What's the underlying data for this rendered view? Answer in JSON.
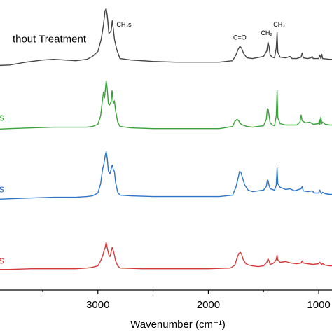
{
  "chart_data": {
    "type": "line",
    "title": "",
    "xlabel": "Wavenumber (cm⁻¹)",
    "ylabel": "",
    "x_reversed": true,
    "xlim": [
      3950,
      880
    ],
    "x_ticks": [
      3000,
      2000,
      1000
    ],
    "x_tick_labels": [
      "3000",
      "2000",
      "1000"
    ],
    "grid": false,
    "legend": "none",
    "series": [
      {
        "name": "thout Treatment",
        "color": "#444444",
        "offset": 3,
        "label_y": 2.52,
        "points": [
          [
            3950,
            2.25
          ],
          [
            3800,
            2.26
          ],
          [
            3650,
            2.3
          ],
          [
            3500,
            2.33
          ],
          [
            3400,
            2.34
          ],
          [
            3300,
            2.33
          ],
          [
            3200,
            2.32
          ],
          [
            3100,
            2.34
          ],
          [
            3050,
            2.38
          ],
          [
            3000,
            2.45
          ],
          [
            2970,
            2.62
          ],
          [
            2950,
            2.82
          ],
          [
            2935,
            3.02
          ],
          [
            2925,
            3.05
          ],
          [
            2915,
            2.95
          ],
          [
            2900,
            2.7
          ],
          [
            2880,
            2.74
          ],
          [
            2870,
            2.88
          ],
          [
            2860,
            2.77
          ],
          [
            2850,
            2.62
          ],
          [
            2830,
            2.48
          ],
          [
            2800,
            2.35
          ],
          [
            2700,
            2.33
          ],
          [
            2500,
            2.31
          ],
          [
            2300,
            2.3
          ],
          [
            2100,
            2.3
          ],
          [
            1900,
            2.3
          ],
          [
            1780,
            2.32
          ],
          [
            1750,
            2.4
          ],
          [
            1730,
            2.48
          ],
          [
            1715,
            2.52
          ],
          [
            1700,
            2.5
          ],
          [
            1680,
            2.42
          ],
          [
            1650,
            2.36
          ],
          [
            1600,
            2.35
          ],
          [
            1500,
            2.38
          ],
          [
            1470,
            2.46
          ],
          [
            1460,
            2.58
          ],
          [
            1450,
            2.52
          ],
          [
            1440,
            2.4
          ],
          [
            1420,
            2.37
          ],
          [
            1400,
            2.36
          ],
          [
            1385,
            2.5
          ],
          [
            1377,
            2.72
          ],
          [
            1370,
            2.44
          ],
          [
            1350,
            2.37
          ],
          [
            1300,
            2.36
          ],
          [
            1260,
            2.38
          ],
          [
            1240,
            2.35
          ],
          [
            1200,
            2.35
          ],
          [
            1160,
            2.37
          ],
          [
            1150,
            2.43
          ],
          [
            1140,
            2.36
          ],
          [
            1100,
            2.35
          ],
          [
            1070,
            2.36
          ],
          [
            1060,
            2.38
          ],
          [
            1050,
            2.35
          ],
          [
            1000,
            2.35
          ],
          [
            990,
            2.4
          ],
          [
            980,
            2.35
          ],
          [
            972,
            2.41
          ],
          [
            965,
            2.35
          ],
          [
            900,
            2.34
          ],
          [
            880,
            2.34
          ]
        ]
      },
      {
        "name": "s",
        "color": "#3aa23a",
        "offset": 2,
        "label_y": 1.42,
        "points": [
          [
            3950,
            1.36
          ],
          [
            3800,
            1.37
          ],
          [
            3600,
            1.38
          ],
          [
            3400,
            1.39
          ],
          [
            3200,
            1.39
          ],
          [
            3100,
            1.39
          ],
          [
            3050,
            1.4
          ],
          [
            3000,
            1.43
          ],
          [
            2975,
            1.55
          ],
          [
            2958,
            1.78
          ],
          [
            2950,
            1.88
          ],
          [
            2940,
            1.8
          ],
          [
            2930,
            1.95
          ],
          [
            2925,
            2.04
          ],
          [
            2915,
            1.92
          ],
          [
            2905,
            1.72
          ],
          [
            2895,
            1.7
          ],
          [
            2880,
            1.75
          ],
          [
            2872,
            1.9
          ],
          [
            2860,
            1.72
          ],
          [
            2850,
            1.76
          ],
          [
            2840,
            1.62
          ],
          [
            2820,
            1.46
          ],
          [
            2800,
            1.4
          ],
          [
            2700,
            1.38
          ],
          [
            2500,
            1.37
          ],
          [
            2300,
            1.37
          ],
          [
            2100,
            1.37
          ],
          [
            1900,
            1.37
          ],
          [
            1780,
            1.4
          ],
          [
            1760,
            1.47
          ],
          [
            1740,
            1.5
          ],
          [
            1725,
            1.48
          ],
          [
            1710,
            1.44
          ],
          [
            1690,
            1.42
          ],
          [
            1650,
            1.4
          ],
          [
            1600,
            1.39
          ],
          [
            1500,
            1.41
          ],
          [
            1475,
            1.5
          ],
          [
            1465,
            1.65
          ],
          [
            1458,
            1.64
          ],
          [
            1450,
            1.56
          ],
          [
            1440,
            1.45
          ],
          [
            1420,
            1.42
          ],
          [
            1400,
            1.41
          ],
          [
            1385,
            1.55
          ],
          [
            1377,
            1.9
          ],
          [
            1370,
            1.52
          ],
          [
            1350,
            1.44
          ],
          [
            1300,
            1.42
          ],
          [
            1200,
            1.42
          ],
          [
            1170,
            1.46
          ],
          [
            1160,
            1.56
          ],
          [
            1150,
            1.48
          ],
          [
            1120,
            1.45
          ],
          [
            1080,
            1.46
          ],
          [
            1050,
            1.43
          ],
          [
            1000,
            1.44
          ],
          [
            995,
            1.5
          ],
          [
            990,
            1.43
          ],
          [
            980,
            1.53
          ],
          [
            972,
            1.44
          ],
          [
            965,
            1.46
          ],
          [
            940,
            1.43
          ],
          [
            900,
            1.42
          ],
          [
            880,
            1.42
          ]
        ]
      },
      {
        "name": "s",
        "color": "#2e74c8",
        "offset": 1,
        "label_y": 0.42,
        "points": [
          [
            3950,
            0.38
          ],
          [
            3800,
            0.39
          ],
          [
            3600,
            0.4
          ],
          [
            3400,
            0.41
          ],
          [
            3200,
            0.41
          ],
          [
            3100,
            0.42
          ],
          [
            3050,
            0.43
          ],
          [
            3000,
            0.47
          ],
          [
            2975,
            0.6
          ],
          [
            2958,
            0.8
          ],
          [
            2945,
            0.88
          ],
          [
            2935,
            0.98
          ],
          [
            2925,
            1.05
          ],
          [
            2915,
            0.95
          ],
          [
            2905,
            0.78
          ],
          [
            2890,
            0.74
          ],
          [
            2878,
            0.82
          ],
          [
            2870,
            0.86
          ],
          [
            2860,
            0.8
          ],
          [
            2850,
            0.77
          ],
          [
            2840,
            0.62
          ],
          [
            2820,
            0.48
          ],
          [
            2800,
            0.44
          ],
          [
            2700,
            0.43
          ],
          [
            2500,
            0.42
          ],
          [
            2300,
            0.42
          ],
          [
            2100,
            0.42
          ],
          [
            1900,
            0.42
          ],
          [
            1780,
            0.44
          ],
          [
            1750,
            0.55
          ],
          [
            1730,
            0.68
          ],
          [
            1718,
            0.77
          ],
          [
            1705,
            0.76
          ],
          [
            1690,
            0.68
          ],
          [
            1670,
            0.58
          ],
          [
            1640,
            0.51
          ],
          [
            1600,
            0.49
          ],
          [
            1550,
            0.5
          ],
          [
            1500,
            0.51
          ],
          [
            1475,
            0.56
          ],
          [
            1465,
            0.65
          ],
          [
            1458,
            0.64
          ],
          [
            1450,
            0.58
          ],
          [
            1440,
            0.53
          ],
          [
            1420,
            0.52
          ],
          [
            1400,
            0.51
          ],
          [
            1385,
            0.58
          ],
          [
            1377,
            0.82
          ],
          [
            1370,
            0.6
          ],
          [
            1350,
            0.55
          ],
          [
            1300,
            0.52
          ],
          [
            1260,
            0.53
          ],
          [
            1220,
            0.5
          ],
          [
            1200,
            0.51
          ],
          [
            1160,
            0.53
          ],
          [
            1150,
            0.56
          ],
          [
            1140,
            0.5
          ],
          [
            1100,
            0.49
          ],
          [
            1060,
            0.5
          ],
          [
            1040,
            0.47
          ],
          [
            1000,
            0.47
          ],
          [
            990,
            0.51
          ],
          [
            975,
            0.46
          ],
          [
            965,
            0.48
          ],
          [
            940,
            0.46
          ],
          [
            900,
            0.45
          ],
          [
            880,
            0.45
          ]
        ]
      },
      {
        "name": "s",
        "color": "#d43a3a",
        "offset": 0,
        "label_y": -0.58,
        "points": [
          [
            3950,
            -0.6
          ],
          [
            3800,
            -0.6
          ],
          [
            3600,
            -0.59
          ],
          [
            3400,
            -0.59
          ],
          [
            3200,
            -0.59
          ],
          [
            3100,
            -0.58
          ],
          [
            3050,
            -0.57
          ],
          [
            3000,
            -0.55
          ],
          [
            2975,
            -0.48
          ],
          [
            2955,
            -0.4
          ],
          [
            2945,
            -0.34
          ],
          [
            2935,
            -0.3
          ],
          [
            2925,
            -0.22
          ],
          [
            2915,
            -0.3
          ],
          [
            2900,
            -0.4
          ],
          [
            2890,
            -0.42
          ],
          [
            2878,
            -0.34
          ],
          [
            2870,
            -0.29
          ],
          [
            2860,
            -0.34
          ],
          [
            2850,
            -0.4
          ],
          [
            2840,
            -0.48
          ],
          [
            2820,
            -0.55
          ],
          [
            2800,
            -0.58
          ],
          [
            2600,
            -0.59
          ],
          [
            2400,
            -0.59
          ],
          [
            2200,
            -0.59
          ],
          [
            2000,
            -0.59
          ],
          [
            1800,
            -0.58
          ],
          [
            1760,
            -0.54
          ],
          [
            1740,
            -0.44
          ],
          [
            1725,
            -0.38
          ],
          [
            1710,
            -0.36
          ],
          [
            1700,
            -0.38
          ],
          [
            1685,
            -0.46
          ],
          [
            1660,
            -0.52
          ],
          [
            1630,
            -0.54
          ],
          [
            1600,
            -0.55
          ],
          [
            1550,
            -0.56
          ],
          [
            1500,
            -0.55
          ],
          [
            1470,
            -0.5
          ],
          [
            1460,
            -0.45
          ],
          [
            1450,
            -0.48
          ],
          [
            1440,
            -0.53
          ],
          [
            1420,
            -0.52
          ],
          [
            1400,
            -0.5
          ],
          [
            1385,
            -0.46
          ],
          [
            1377,
            -0.4
          ],
          [
            1370,
            -0.47
          ],
          [
            1350,
            -0.5
          ],
          [
            1300,
            -0.49
          ],
          [
            1250,
            -0.51
          ],
          [
            1200,
            -0.52
          ],
          [
            1160,
            -0.51
          ],
          [
            1150,
            -0.48
          ],
          [
            1140,
            -0.51
          ],
          [
            1100,
            -0.52
          ],
          [
            1050,
            -0.53
          ],
          [
            1000,
            -0.52
          ],
          [
            990,
            -0.5
          ],
          [
            975,
            -0.53
          ],
          [
            965,
            -0.52
          ],
          [
            940,
            -0.54
          ],
          [
            900,
            -0.55
          ],
          [
            880,
            -0.55
          ]
        ]
      }
    ],
    "annotations": [
      {
        "text": "CH₂a",
        "x": 2925,
        "series_index": 0
      },
      {
        "text": "CH₃s",
        "x": 2840,
        "series_index": 0
      },
      {
        "text": "C=O",
        "x": 1715,
        "series_index": 0
      },
      {
        "text": "CH₂",
        "x": 1460,
        "series_index": 0
      },
      {
        "text": "CH₃",
        "x": 1377,
        "series_index": 0
      }
    ]
  }
}
